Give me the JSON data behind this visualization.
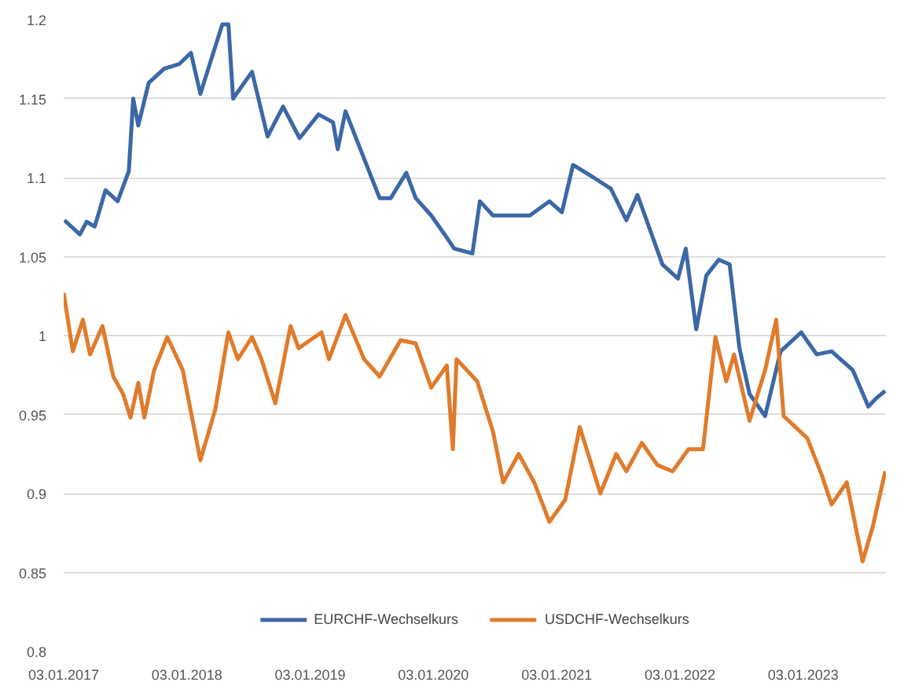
{
  "chart_data": {
    "type": "line",
    "xlim": [
      "2017-01-03",
      "2023-09-05"
    ],
    "xticks": [
      {
        "value": "2017-01-03",
        "label": "03.01.2017"
      },
      {
        "value": "2018-01-03",
        "label": "03.01.2018"
      },
      {
        "value": "2019-01-03",
        "label": "03.01.2019"
      },
      {
        "value": "2020-01-03",
        "label": "03.01.2020"
      },
      {
        "value": "2021-01-03",
        "label": "03.01.2021"
      },
      {
        "value": "2022-01-03",
        "label": "03.01.2022"
      },
      {
        "value": "2023-01-03",
        "label": "03.01.2023"
      }
    ],
    "ylim": [
      0.8,
      1.2
    ],
    "yticks": [
      0.8,
      0.85,
      0.9,
      0.95,
      1,
      1.05,
      1.1,
      1.15,
      1.2
    ],
    "grid": "y",
    "legend": "bottom",
    "line_style": "solid",
    "series": [
      {
        "name": "EURCHF-Wechselkurs",
        "color": "#3b68a6",
        "x": [
          "2017-01-05",
          "2017-02-20",
          "2017-03-12",
          "2017-04-05",
          "2017-05-07",
          "2017-06-12",
          "2017-07-15",
          "2017-07-28",
          "2017-08-12",
          "2017-09-12",
          "2017-10-28",
          "2017-12-12",
          "2018-01-15",
          "2018-02-12",
          "2018-03-12",
          "2018-04-18",
          "2018-05-06",
          "2018-05-20",
          "2018-07-15",
          "2018-08-30",
          "2018-10-15",
          "2018-12-03",
          "2019-01-28",
          "2019-03-12",
          "2019-03-26",
          "2019-04-18",
          "2019-06-12",
          "2019-07-28",
          "2019-08-30",
          "2019-10-15",
          "2019-11-12",
          "2019-12-28",
          "2020-02-12",
          "2020-03-05",
          "2020-04-28",
          "2020-05-20",
          "2020-06-28",
          "2020-10-15",
          "2020-12-12",
          "2021-01-18",
          "2021-02-20",
          "2021-04-15",
          "2021-06-12",
          "2021-07-28",
          "2021-08-30",
          "2021-11-12",
          "2021-12-28",
          "2022-01-20",
          "2022-02-20",
          "2022-03-22",
          "2022-04-28",
          "2022-05-30",
          "2022-06-28",
          "2022-07-28",
          "2022-09-12",
          "2022-10-28",
          "2022-12-28",
          "2023-02-12",
          "2023-03-28",
          "2023-05-30",
          "2023-07-15",
          "2023-08-06",
          "2023-09-03"
        ],
        "values": [
          1.073,
          1.064,
          1.072,
          1.069,
          1.092,
          1.085,
          1.104,
          1.15,
          1.133,
          1.16,
          1.169,
          1.172,
          1.179,
          1.153,
          1.172,
          1.197,
          1.197,
          1.15,
          1.167,
          1.126,
          1.145,
          1.125,
          1.14,
          1.135,
          1.118,
          1.142,
          1.112,
          1.087,
          1.087,
          1.103,
          1.087,
          1.076,
          1.062,
          1.055,
          1.052,
          1.085,
          1.076,
          1.076,
          1.085,
          1.078,
          1.108,
          1.101,
          1.093,
          1.073,
          1.089,
          1.045,
          1.036,
          1.055,
          1.004,
          1.038,
          1.048,
          1.045,
          0.992,
          0.963,
          0.949,
          0.99,
          1.002,
          0.988,
          0.99,
          0.978,
          0.955,
          0.96,
          0.965
        ]
      },
      {
        "name": "USDCHF-Wechselkurs",
        "color": "#e07b2c",
        "x": [
          "2017-01-03",
          "2017-01-30",
          "2017-03-01",
          "2017-03-22",
          "2017-04-28",
          "2017-05-30",
          "2017-06-28",
          "2017-07-20",
          "2017-08-12",
          "2017-08-30",
          "2017-09-28",
          "2017-11-06",
          "2017-12-22",
          "2018-02-12",
          "2018-03-28",
          "2018-05-06",
          "2018-06-03",
          "2018-07-15",
          "2018-08-12",
          "2018-09-22",
          "2018-11-06",
          "2018-11-30",
          "2019-02-06",
          "2019-02-28",
          "2019-04-18",
          "2019-06-12",
          "2019-07-28",
          "2019-09-28",
          "2019-11-12",
          "2019-12-28",
          "2020-02-12",
          "2020-03-01",
          "2020-03-12",
          "2020-05-12",
          "2020-06-28",
          "2020-07-28",
          "2020-09-12",
          "2020-10-28",
          "2020-12-12",
          "2021-01-28",
          "2021-03-12",
          "2021-05-12",
          "2021-06-28",
          "2021-07-28",
          "2021-09-12",
          "2021-10-28",
          "2021-12-12",
          "2022-01-28",
          "2022-03-12",
          "2022-04-18",
          "2022-05-20",
          "2022-06-12",
          "2022-07-28",
          "2022-09-12",
          "2022-10-15",
          "2022-11-06",
          "2023-01-15",
          "2023-02-28",
          "2023-03-28",
          "2023-05-12",
          "2023-06-28",
          "2023-07-28",
          "2023-09-03"
        ],
        "values": [
          1.027,
          0.99,
          1.01,
          0.988,
          1.006,
          0.974,
          0.963,
          0.948,
          0.97,
          0.948,
          0.978,
          0.999,
          0.978,
          0.921,
          0.953,
          1.002,
          0.985,
          0.999,
          0.985,
          0.957,
          1.006,
          0.992,
          1.002,
          0.985,
          1.013,
          0.985,
          0.974,
          0.997,
          0.995,
          0.967,
          0.981,
          0.928,
          0.985,
          0.971,
          0.939,
          0.907,
          0.925,
          0.907,
          0.882,
          0.896,
          0.942,
          0.9,
          0.925,
          0.914,
          0.932,
          0.918,
          0.914,
          0.928,
          0.928,
          0.999,
          0.971,
          0.988,
          0.946,
          0.978,
          1.01,
          0.949,
          0.935,
          0.911,
          0.893,
          0.907,
          0.857,
          0.879,
          0.914
        ]
      }
    ]
  }
}
